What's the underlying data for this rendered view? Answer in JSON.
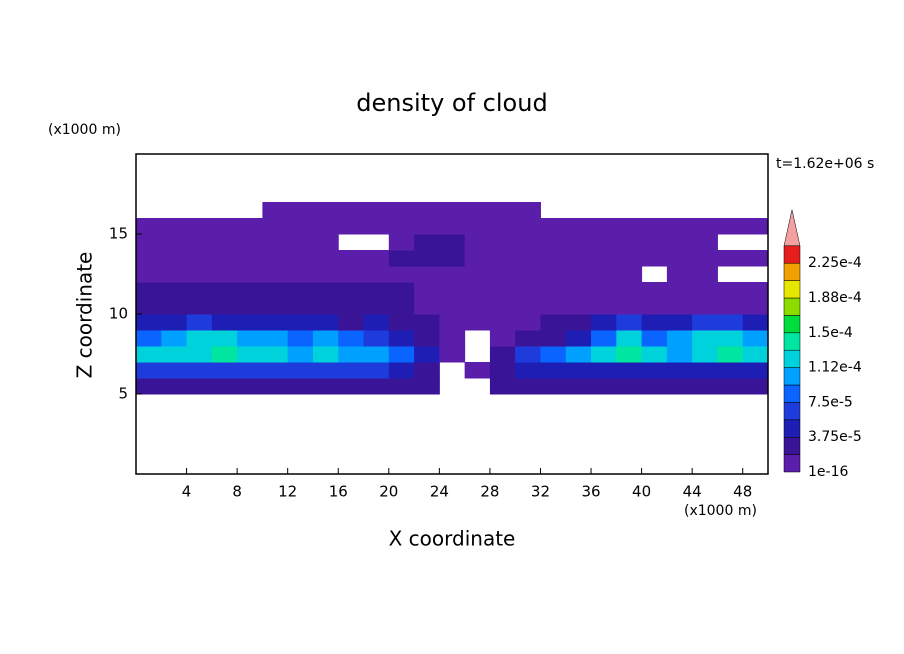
{
  "chart_data": {
    "type": "contour",
    "title": "density of cloud",
    "time_label": "t=1.62e+06 s",
    "x_label": "X coordinate",
    "y_label": "Z coordinate",
    "x_unit": "(x1000 m)",
    "y_unit": "(x1000 m)",
    "xlim": [
      0,
      50
    ],
    "ylim": [
      0,
      20
    ],
    "xticks": [
      4,
      8,
      12,
      16,
      20,
      24,
      28,
      32,
      36,
      40,
      44,
      48
    ],
    "yticks": [
      5,
      10,
      15
    ],
    "x": [
      1,
      3,
      5,
      7,
      9,
      11,
      13,
      15,
      17,
      19,
      21,
      23,
      25,
      27,
      29,
      31,
      33,
      35,
      37,
      39,
      41,
      43,
      45,
      47,
      49
    ],
    "y": [
      5.5,
      6.5,
      7.5,
      8.5,
      9.5,
      10.5,
      11.5,
      12.5,
      13.5,
      14.5,
      15.5,
      16.5
    ],
    "z": [
      [
        3e-05,
        3e-05,
        3e-05,
        3e-05,
        3e-05,
        3e-05,
        3e-05,
        3e-05,
        3e-05,
        3e-05,
        3e-05,
        2e-05,
        null,
        null,
        2e-05,
        3e-05,
        3e-05,
        3e-05,
        3e-05,
        3e-05,
        3e-05,
        3e-05,
        3e-05,
        3e-05,
        3e-05
      ],
      [
        6e-05,
        6e-05,
        6e-05,
        6e-05,
        6e-05,
        6e-05,
        6e-05,
        6e-05,
        6e-05,
        6e-05,
        4e-05,
        2e-05,
        null,
        1e-05,
        3e-05,
        5e-05,
        5e-05,
        5e-05,
        5e-05,
        5e-05,
        5e-05,
        5e-05,
        5e-05,
        5e-05,
        5e-05
      ],
      [
        0.00012,
        0.00013,
        0.00012,
        0.00014,
        0.00013,
        0.00012,
        0.00011,
        0.00012,
        0.00011,
        0.0001,
        8e-05,
        4e-05,
        1e-05,
        null,
        3e-05,
        6e-05,
        8e-05,
        0.0001,
        0.00012,
        0.00014,
        0.00012,
        0.00011,
        0.00013,
        0.00014,
        0.00013
      ],
      [
        9e-05,
        0.0001,
        0.00012,
        0.00013,
        0.00011,
        0.0001,
        9e-05,
        0.0001,
        8e-05,
        7e-05,
        5e-05,
        3e-05,
        1e-05,
        null,
        1e-05,
        2e-05,
        3e-05,
        5e-05,
        9e-05,
        0.00012,
        8e-05,
        0.0001,
        0.00012,
        0.00013,
        0.00011
      ],
      [
        4e-05,
        5e-05,
        6e-05,
        5e-05,
        4e-05,
        5e-05,
        4e-05,
        4e-05,
        3e-05,
        4e-05,
        3e-05,
        2e-05,
        1e-05,
        1e-05,
        1e-05,
        1e-05,
        2e-05,
        3e-05,
        5e-05,
        6e-05,
        4e-05,
        5e-05,
        6e-05,
        6e-05,
        5e-05
      ],
      [
        2e-05,
        2e-05,
        3e-05,
        2e-05,
        2e-05,
        3e-05,
        2e-05,
        2e-05,
        2e-05,
        2e-05,
        2e-05,
        1e-05,
        1e-05,
        1e-05,
        1e-05,
        1e-05,
        1e-05,
        1e-05,
        1e-05,
        1e-05,
        1e-05,
        1e-05,
        1e-05,
        1e-05,
        1e-05
      ],
      [
        2e-05,
        2e-05,
        2e-05,
        2e-05,
        2e-05,
        2e-05,
        2e-05,
        2e-05,
        2e-05,
        2e-05,
        2e-05,
        1e-05,
        1e-05,
        1e-05,
        1e-05,
        1e-05,
        1e-05,
        1e-05,
        1e-05,
        1e-05,
        1e-05,
        1e-05,
        1e-05,
        1e-05,
        1e-05
      ],
      [
        1e-05,
        1e-05,
        1e-05,
        1e-05,
        1e-05,
        1e-05,
        1e-05,
        1e-05,
        1e-05,
        1e-05,
        1e-05,
        1e-05,
        1e-05,
        1e-05,
        1e-05,
        1e-05,
        1e-05,
        1e-05,
        1e-05,
        5e-06,
        null,
        5e-06,
        5e-06,
        null,
        null
      ],
      [
        1e-05,
        1e-05,
        1e-05,
        1e-05,
        1e-05,
        1e-05,
        1e-05,
        1e-05,
        1e-05,
        1e-05,
        2e-05,
        2e-05,
        2e-05,
        1e-05,
        1e-05,
        1e-05,
        1e-05,
        1e-05,
        1e-05,
        1e-05,
        1e-05,
        1e-05,
        1e-05,
        1e-05,
        1e-05
      ],
      [
        8e-06,
        8e-06,
        8e-06,
        8e-06,
        8e-06,
        8e-06,
        8e-06,
        8e-06,
        null,
        null,
        1e-05,
        2e-05,
        2e-05,
        1e-05,
        8e-06,
        8e-06,
        8e-06,
        8e-06,
        8e-06,
        8e-06,
        8e-06,
        5e-06,
        5e-06,
        null,
        null
      ],
      [
        5e-06,
        5e-06,
        5e-06,
        5e-06,
        5e-06,
        5e-06,
        5e-06,
        5e-06,
        5e-06,
        5e-06,
        5e-06,
        5e-06,
        5e-06,
        5e-06,
        5e-06,
        5e-06,
        5e-06,
        5e-06,
        5e-06,
        5e-06,
        5e-06,
        5e-06,
        5e-06,
        5e-06,
        5e-06
      ],
      [
        null,
        null,
        null,
        null,
        null,
        5e-06,
        5e-06,
        5e-06,
        5e-06,
        5e-06,
        5e-06,
        5e-06,
        5e-06,
        5e-06,
        5e-06,
        5e-06,
        null,
        null,
        null,
        null,
        null,
        null,
        null,
        null,
        null
      ]
    ],
    "levels": [
      {
        "value": 1e-16,
        "label": "1e-16"
      },
      1.875e-05,
      {
        "value": 3.75e-05,
        "label": "3.75e-5"
      },
      5.625e-05,
      {
        "value": 7.5e-05,
        "label": "7.5e-5"
      },
      9.375e-05,
      {
        "value": 0.0001125,
        "label": "1.12e-4"
      },
      0.00013125,
      {
        "value": 0.00015,
        "label": "1.5e-4"
      },
      0.00016875,
      {
        "value": 0.0001875,
        "label": "1.88e-4"
      },
      0.00020625,
      {
        "value": 0.000225,
        "label": "2.25e-4"
      }
    ],
    "colors": [
      "#5a1eaa",
      "#3a1496",
      "#1e1eb4",
      "#1e3cdc",
      "#0a64ff",
      "#00a0ff",
      "#00d2dc",
      "#00e6a0",
      "#00dc3c",
      "#8cdc00",
      "#e6e600",
      "#f0a000",
      "#e61e1e"
    ],
    "over_color": "#f5a0a0"
  }
}
